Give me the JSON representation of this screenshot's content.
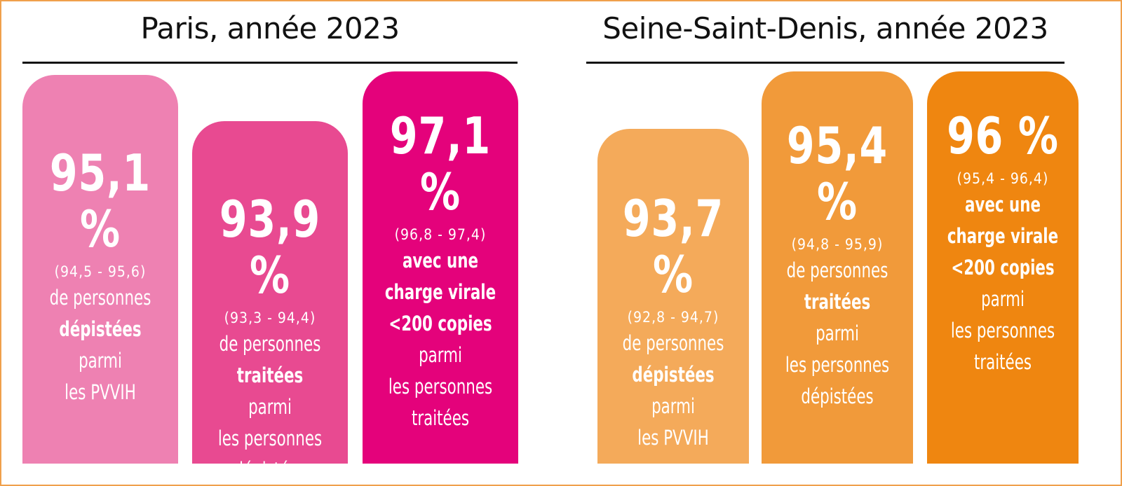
{
  "chart_data": [
    {
      "type": "bar",
      "title": "Paris, année 2023",
      "unit": "%",
      "ylim": [
        0,
        100
      ],
      "colors": [
        "#ee81b2",
        "#e84a91",
        "#e4027b"
      ],
      "bars": [
        {
          "value": 95.1,
          "label": "95,1 %",
          "ci": "(94,5 - 95,6)",
          "lines": [
            {
              "text": "de personnes",
              "bold": false
            },
            {
              "text": "dépistées",
              "bold": true
            },
            {
              "text": "parmi",
              "bold": false
            },
            {
              "text": "les PVVIH",
              "bold": false
            }
          ]
        },
        {
          "value": 93.9,
          "label": "93,9 %",
          "ci": "(93,3 - 94,4)",
          "lines": [
            {
              "text": "de personnes",
              "bold": false
            },
            {
              "text": "traitées",
              "bold": true
            },
            {
              "text": "parmi",
              "bold": false
            },
            {
              "text": "les personnes",
              "bold": false
            },
            {
              "text": "dépistées",
              "bold": false
            }
          ]
        },
        {
          "value": 97.1,
          "label": "97,1 %",
          "ci": "(96,8 - 97,4)",
          "lines": [
            {
              "text": "avec une",
              "bold": true
            },
            {
              "text": "charge virale",
              "bold": true
            },
            {
              "text": "<200 copies",
              "bold": true
            },
            {
              "text": "parmi",
              "bold": false
            },
            {
              "text": "les personnes",
              "bold": false
            },
            {
              "text": "traitées",
              "bold": false
            }
          ]
        }
      ]
    },
    {
      "type": "bar",
      "title": "Seine-Saint-Denis, année 2023",
      "unit": "%",
      "ylim": [
        0,
        100
      ],
      "colors": [
        "#f4aa5a",
        "#f19a3a",
        "#ef8610"
      ],
      "bars": [
        {
          "value": 93.7,
          "label": "93,7 %",
          "ci": "(92,8 - 94,7)",
          "lines": [
            {
              "text": "de personnes",
              "bold": false
            },
            {
              "text": "dépistées",
              "bold": true
            },
            {
              "text": "parmi",
              "bold": false
            },
            {
              "text": "les PVVIH",
              "bold": false
            }
          ]
        },
        {
          "value": 95.4,
          "label": "95,4 %",
          "ci": "(94,8 - 95,9)",
          "lines": [
            {
              "text": "de personnes",
              "bold": false
            },
            {
              "text": "traitées",
              "bold": true
            },
            {
              "text": "parmi",
              "bold": false
            },
            {
              "text": "les personnes",
              "bold": false
            },
            {
              "text": "dépistées",
              "bold": false
            }
          ]
        },
        {
          "value": 96,
          "label": "96 %",
          "ci": "(95,4 - 96,4)",
          "lines": [
            {
              "text": "avec une",
              "bold": true
            },
            {
              "text": "charge virale",
              "bold": true
            },
            {
              "text": "<200 copies",
              "bold": true
            },
            {
              "text": "parmi",
              "bold": false
            },
            {
              "text": "les personnes",
              "bold": false
            },
            {
              "text": "traitées",
              "bold": false
            }
          ]
        }
      ]
    }
  ]
}
